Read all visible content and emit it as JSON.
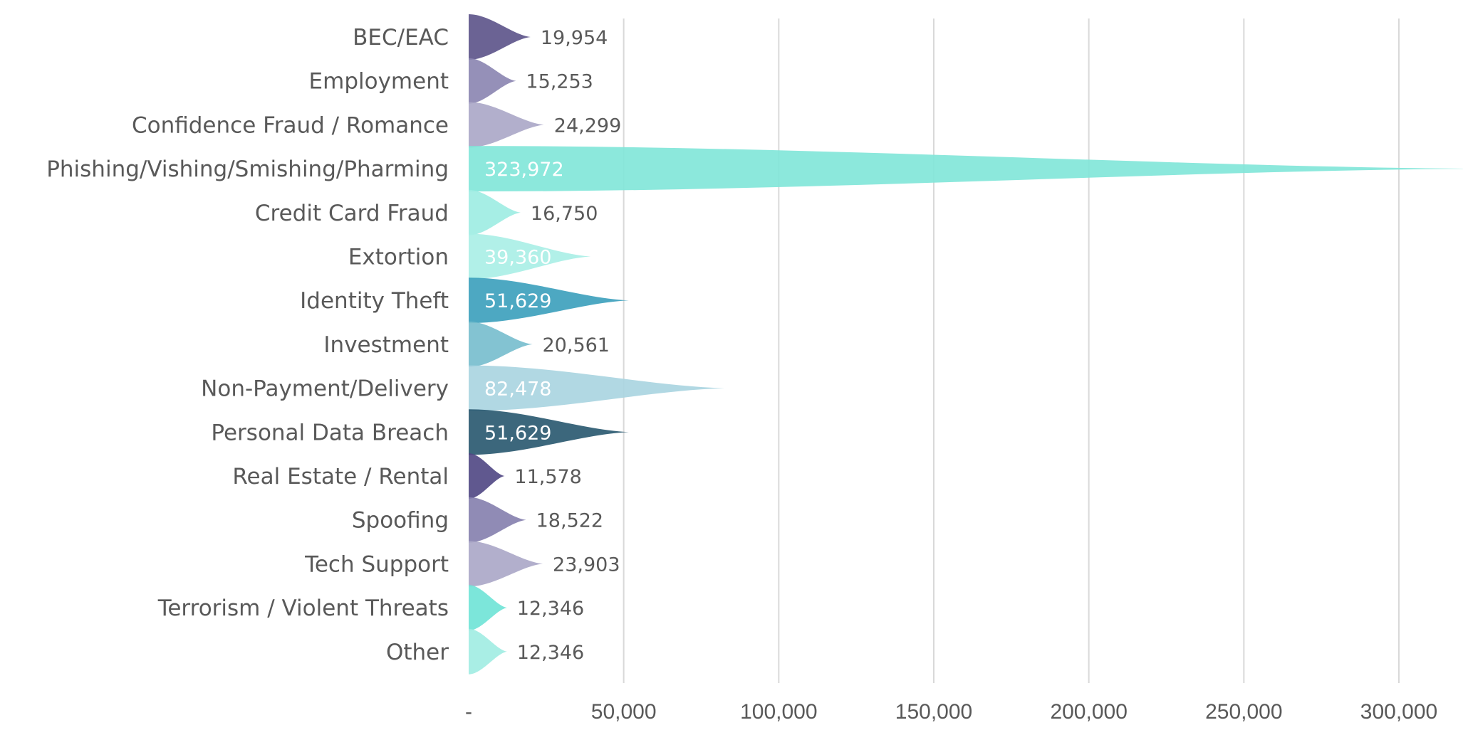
{
  "chart_data": {
    "type": "bar",
    "orientation": "horizontal",
    "shape": "spike",
    "title": "",
    "xlabel": "",
    "ylabel": "",
    "xlim": [
      0,
      325000
    ],
    "ticks": [
      0,
      50000,
      100000,
      150000,
      200000,
      250000,
      300000
    ],
    "tick_labels": [
      "-",
      "50,000",
      "100,000",
      "150,000",
      "200,000",
      "250,000",
      "300,000"
    ],
    "grid": true,
    "categories": [
      "BEC/EAC",
      "Employment",
      "Confidence Fraud / Romance",
      "Phishing/Vishing/Smishing/Pharming",
      "Credit Card Fraud",
      "Extortion",
      "Identity Theft",
      "Investment",
      "Non-Payment/Delivery",
      "Personal Data Breach",
      "Real Estate / Rental",
      "Spoofing",
      "Tech Support",
      "Terrorism / Violent Threats",
      "Other"
    ],
    "values": [
      19954,
      15253,
      24299,
      323972,
      16750,
      39360,
      51629,
      20561,
      82478,
      51629,
      11578,
      18522,
      23903,
      12346,
      12346
    ],
    "value_labels": [
      "19,954",
      "15,253",
      "24,299",
      "323,972",
      "16,750",
      "39,360",
      "51,629",
      "20,561",
      "82,478",
      "51,629",
      "11,578",
      "18,522",
      "23,903",
      "12,346",
      "12,346"
    ],
    "colors": [
      "#5b5288",
      "#8a84b0",
      "#aaa6c6",
      "#7fe6d8",
      "#9cece2",
      "#a8eee6",
      "#3a9fbb",
      "#76bccd",
      "#a8d4e0",
      "#27566e",
      "#4f4683",
      "#847ead",
      "#aaa6c6",
      "#6ee3d6",
      "#a0ece2"
    ],
    "label_inside": [
      false,
      false,
      false,
      true,
      false,
      true,
      true,
      false,
      true,
      true,
      false,
      false,
      false,
      false,
      false
    ]
  }
}
